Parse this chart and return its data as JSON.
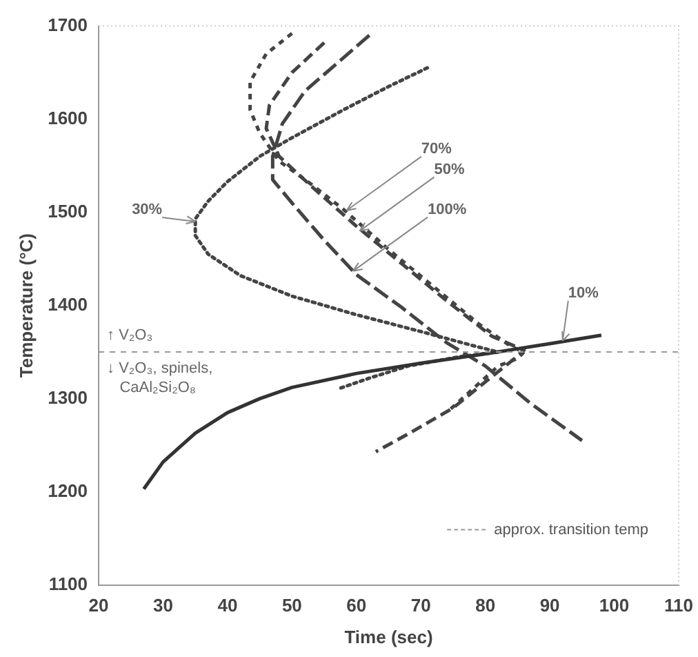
{
  "chart_data": {
    "type": "line",
    "xlabel": "Time (sec)",
    "ylabel": "Temperature (°C)",
    "xlim": [
      20,
      110
    ],
    "xticks": [
      20,
      30,
      40,
      50,
      60,
      70,
      80,
      90,
      100,
      110
    ],
    "ylim": [
      1100,
      1700
    ],
    "yticks": [
      1100,
      1200,
      1300,
      1400,
      1500,
      1600,
      1700
    ],
    "grid": false,
    "legend": "bottom right",
    "marker": "none",
    "series": [
      {
        "color": "#333333",
        "line_style": "solid",
        "x": [
          27,
          30,
          35,
          40,
          45,
          50,
          60,
          70,
          80,
          90,
          98
        ],
        "values": [
          1203,
          1232,
          1263,
          1285,
          1300,
          1312,
          1327,
          1338,
          1348,
          1359,
          1368
        ]
      },
      {
        "color": "#444444",
        "line_style": "dotted",
        "x": [
          71,
          65,
          58,
          50,
          45,
          40,
          37,
          35,
          35,
          37,
          42,
          50,
          60,
          70,
          78,
          82,
          76,
          68,
          62,
          57
        ],
        "values": [
          1655,
          1635,
          1610,
          1580,
          1560,
          1533,
          1512,
          1493,
          1475,
          1455,
          1432,
          1410,
          1390,
          1372,
          1357,
          1350,
          1345,
          1335,
          1322,
          1310
        ]
      },
      {
        "color": "#444444",
        "line_style": "dashed",
        "x": [
          50,
          46,
          43.5,
          43.5,
          45,
          48,
          53,
          58,
          65,
          72,
          79,
          84,
          86,
          85,
          82,
          78,
          74
        ],
        "values": [
          1692,
          1670,
          1640,
          1610,
          1585,
          1555,
          1530,
          1503,
          1460,
          1420,
          1380,
          1356,
          1350,
          1343,
          1335,
          1310,
          1285
        ]
      },
      {
        "color": "#444444",
        "line_style": "dashed",
        "x": [
          55,
          50,
          46.5,
          46,
          48,
          53,
          60,
          67,
          74,
          81,
          86,
          84,
          80,
          75,
          68,
          63
        ],
        "values": [
          1682,
          1650,
          1615,
          1590,
          1560,
          1528,
          1485,
          1445,
          1405,
          1367,
          1352,
          1340,
          1318,
          1290,
          1262,
          1243
        ]
      },
      {
        "color": "#444444",
        "line_style": "dashed",
        "x": [
          62,
          57,
          52,
          48.5,
          47,
          47,
          50,
          55,
          60,
          67,
          74,
          80,
          87,
          95
        ],
        "values": [
          1690,
          1660,
          1630,
          1595,
          1560,
          1535,
          1510,
          1470,
          1433,
          1398,
          1360,
          1335,
          1295,
          1255
        ]
      }
    ],
    "ref_lines": [
      {
        "axis": "y",
        "value": 1350,
        "label": "approx. transition temp",
        "color": "#999999",
        "line_style": "dashed"
      }
    ],
    "annotations": [
      {
        "text": "10%",
        "x": 92,
        "y": 1362
      },
      {
        "text": "30%",
        "x": 35,
        "y": 1490
      },
      {
        "text": "70%",
        "x": 58.5,
        "y": 1502
      },
      {
        "text": "50%",
        "x": 60.5,
        "y": 1480
      },
      {
        "text": "100%",
        "x": 59.5,
        "y": 1437
      },
      "↑ V₂O₃",
      "↓ V₂O₃, spinels, CaAl₂Si₂O₈"
    ]
  }
}
